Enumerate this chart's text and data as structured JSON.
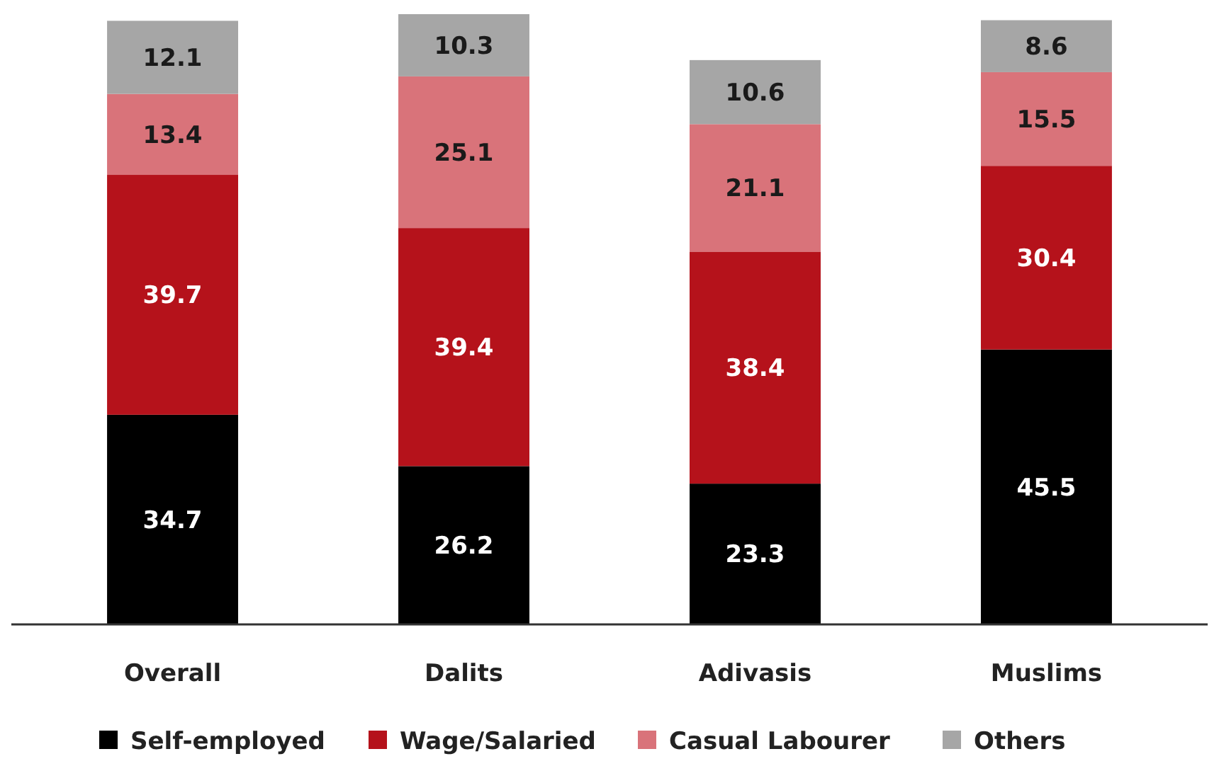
{
  "chart_data": {
    "type": "bar",
    "stacked": true,
    "data_labels": true,
    "legend": "bottom",
    "categories": [
      "Overall",
      "Dalits",
      "Adivasis",
      "Muslims"
    ],
    "series": [
      {
        "name": "Self-employed",
        "color": "#000000",
        "values": [
          34.7,
          26.2,
          23.3,
          45.5
        ]
      },
      {
        "name": "Wage/Salaried",
        "color": "#b5121b",
        "values": [
          39.7,
          39.4,
          38.4,
          30.4
        ]
      },
      {
        "name": "Casual Labourer",
        "color": "#d9737a",
        "values": [
          13.4,
          25.1,
          21.1,
          15.5
        ]
      },
      {
        "name": "Others",
        "color": "#a6a6a6",
        "values": [
          12.1,
          10.3,
          10.6,
          8.6
        ]
      }
    ]
  }
}
